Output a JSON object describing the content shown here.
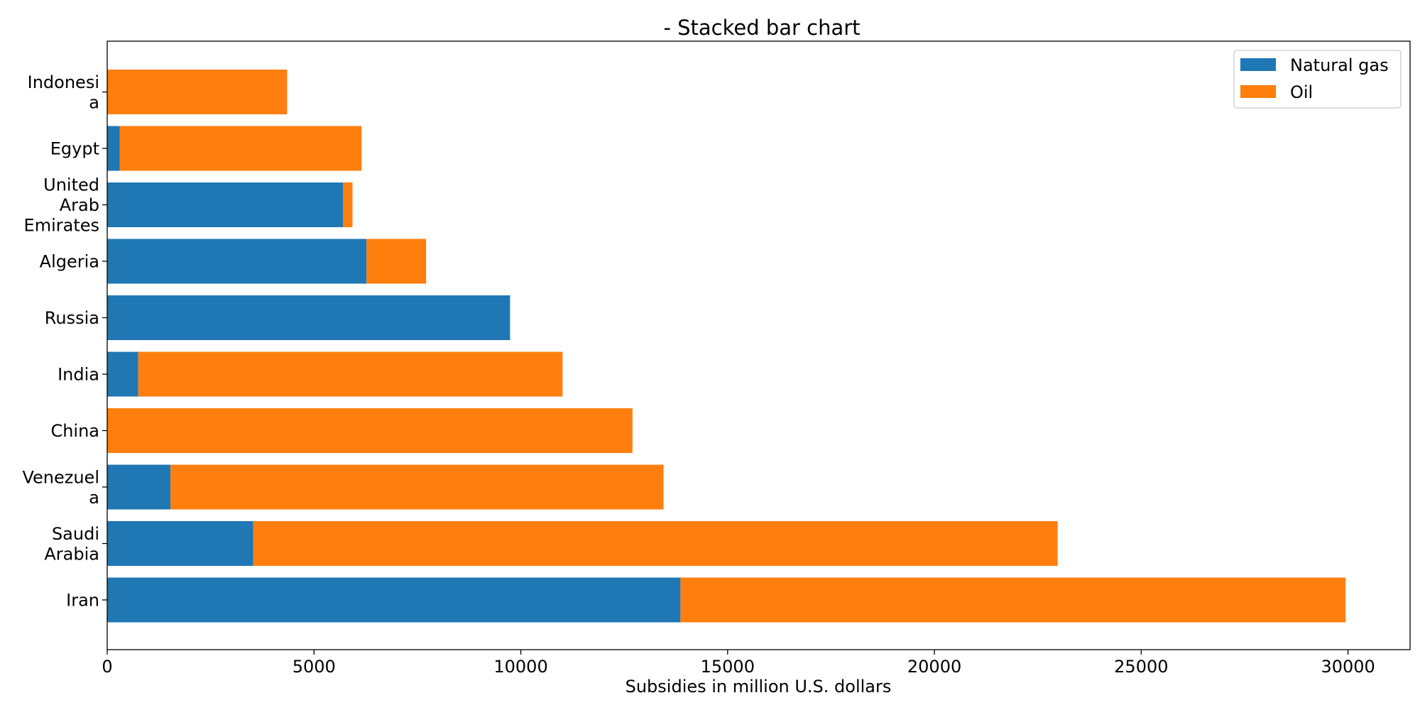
{
  "chart_data": {
    "type": "bar",
    "orientation": "horizontal",
    "stacked": true,
    "title": "- Stacked bar chart",
    "xlabel": "Subsidies in million U.S. dollars",
    "ylabel": "",
    "xlim": [
      0,
      31500
    ],
    "xticks": [
      "0",
      "5000",
      "10000",
      "15000",
      "20000",
      "25000",
      "30000"
    ],
    "categories": [
      "Iran",
      "Saudi Arabia",
      "Venezuela",
      "China",
      "India",
      "Russia",
      "Algeria",
      "United Arab Emirates",
      "Egypt",
      "Indonesia"
    ],
    "category_label_lines": [
      [
        "Iran"
      ],
      [
        "Saudi",
        "Arabia"
      ],
      [
        "Venezuel",
        "a"
      ],
      [
        "China"
      ],
      [
        "India"
      ],
      [
        "Russia"
      ],
      [
        "Algeria"
      ],
      [
        "United",
        "Arab",
        "Emirates"
      ],
      [
        "Egypt"
      ],
      [
        "Indonesi",
        "a"
      ]
    ],
    "series": [
      {
        "name": "Natural gas",
        "color": "#1f77b4",
        "values": [
          13860,
          3530,
          1530,
          0,
          750,
          9740,
          6270,
          5700,
          300,
          0
        ]
      },
      {
        "name": "Oil",
        "color": "#ff7f0e",
        "values": [
          16080,
          19450,
          11920,
          12700,
          10260,
          0,
          1440,
          230,
          5850,
          4350
        ]
      }
    ],
    "grid": false,
    "legend_position": "top-right"
  }
}
